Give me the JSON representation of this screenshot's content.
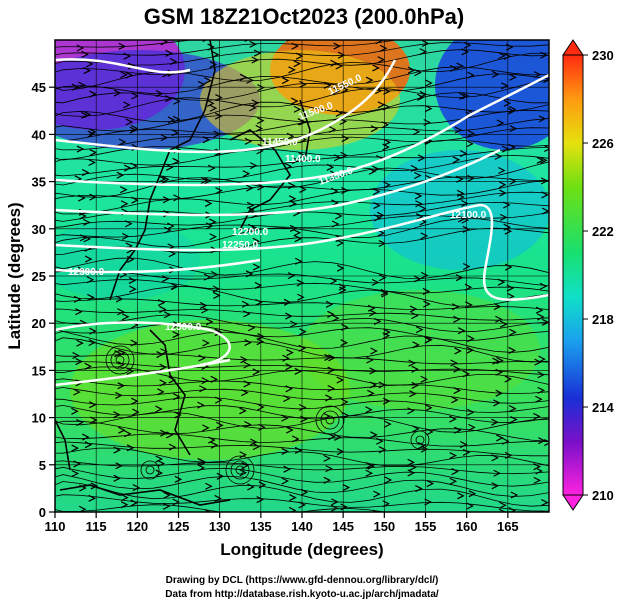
{
  "title": "GSM 18Z21Oct2023 (200.0hPa)",
  "xlabel": "Longitude (degrees)",
  "ylabel": "Latitude  (degrees)",
  "credits": [
    "Drawing by DCL (https://www.gfd-dennou.org/library/dcl/)",
    "Data from http://database.rish.kyoto-u.ac.jp/arch/jmadata/"
  ],
  "x_ticks": [
    "110",
    "115",
    "120",
    "125",
    "130",
    "135",
    "140",
    "145",
    "150",
    "155",
    "160",
    "165"
  ],
  "y_ticks": [
    "0",
    "5",
    "10",
    "15",
    "20",
    "25",
    "30",
    "35",
    "40",
    "45"
  ],
  "colorbar": {
    "ticks": [
      "230",
      "226",
      "222",
      "218",
      "214",
      "210"
    ],
    "min": 210,
    "max": 230
  },
  "contour_labels": [
    "11550.0",
    "11500.0",
    "11450.0",
    "11400.0",
    "11350.0",
    "12100.0",
    "12200.0",
    "12250.0",
    "12300.0",
    "12500.0"
  ],
  "map": {
    "lon_range": [
      110,
      170
    ],
    "lat_range": [
      0,
      50
    ],
    "field": "temperature (K)",
    "overlays": [
      "streamlines",
      "geopotential height contours",
      "coastlines"
    ]
  }
}
